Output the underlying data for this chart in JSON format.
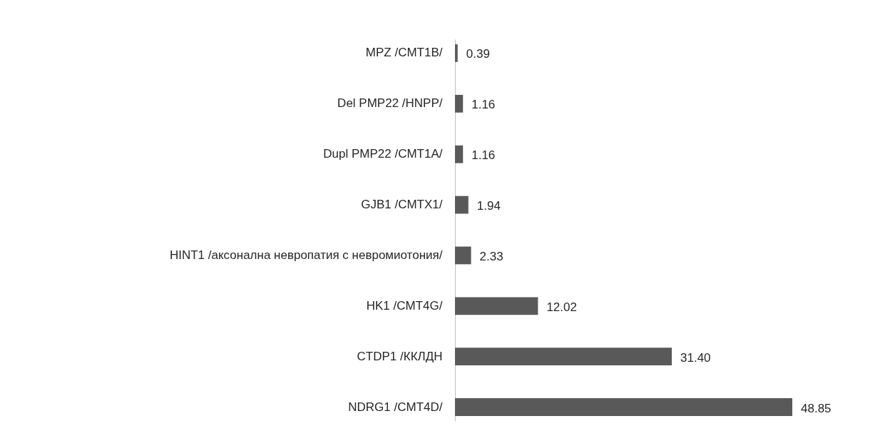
{
  "chart_data": {
    "type": "bar",
    "orientation": "horizontal",
    "categories": [
      "MPZ /CMT1B/",
      "Del PMP22 /HNPP/",
      "Dupl PMP22 /CMT1A/",
      "GJB1 /CMTX1/",
      "HINT1 /аксонална невропатия с невромиотония/",
      "HK1 /CMT4G/",
      "CTDP1 /ККЛДН",
      "NDRG1 /CMT4D/"
    ],
    "values": [
      0.39,
      1.16,
      1.16,
      1.94,
      2.33,
      12.02,
      31.4,
      48.85
    ],
    "value_labels": [
      "0.39",
      "1.16",
      "1.16",
      "1.94",
      "2.33",
      "12.02",
      "31.40",
      "48.85"
    ],
    "color": "#595959"
  }
}
